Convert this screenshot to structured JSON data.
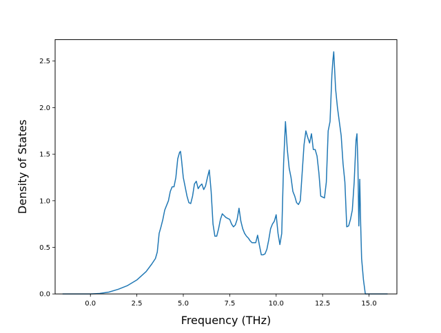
{
  "chart_data": {
    "type": "line",
    "title": "",
    "xlabel": "Frequency (THz)",
    "ylabel": "Density of States",
    "xlim": [
      -1.9,
      16.5
    ],
    "ylim": [
      0,
      2.73
    ],
    "xticks": [
      0.0,
      2.5,
      5.0,
      7.5,
      10.0,
      12.5,
      15.0
    ],
    "xtick_labels": [
      "0.0",
      "2.5",
      "5.0",
      "7.5",
      "10.0",
      "12.5",
      "15.0"
    ],
    "yticks": [
      0.0,
      0.5,
      1.0,
      1.5,
      2.0,
      2.5
    ],
    "ytick_labels": [
      "0.0",
      "0.5",
      "1.0",
      "1.5",
      "2.0",
      "2.5"
    ],
    "grid": false,
    "legend": "none",
    "series": [
      {
        "color": "#1f77b4",
        "x": [
          -1.5,
          -1.0,
          -0.5,
          0.0,
          0.5,
          1.0,
          1.5,
          2.0,
          2.5,
          3.0,
          3.3,
          3.5,
          3.6,
          3.7,
          3.8,
          3.9,
          4.0,
          4.1,
          4.2,
          4.3,
          4.4,
          4.5,
          4.6,
          4.7,
          4.8,
          4.85,
          4.9,
          5.0,
          5.1,
          5.2,
          5.3,
          5.4,
          5.5,
          5.6,
          5.7,
          5.8,
          5.9,
          6.0,
          6.1,
          6.2,
          6.3,
          6.4,
          6.5,
          6.6,
          6.7,
          6.8,
          6.9,
          7.0,
          7.1,
          7.2,
          7.3,
          7.4,
          7.5,
          7.6,
          7.7,
          7.8,
          7.9,
          8.0,
          8.1,
          8.2,
          8.3,
          8.4,
          8.5,
          8.6,
          8.7,
          8.8,
          8.9,
          9.0,
          9.1,
          9.2,
          9.3,
          9.4,
          9.5,
          9.6,
          9.7,
          9.8,
          9.9,
          10.0,
          10.1,
          10.2,
          10.3,
          10.4,
          10.5,
          10.6,
          10.7,
          10.75,
          10.8,
          10.9,
          11.0,
          11.1,
          11.2,
          11.3,
          11.4,
          11.5,
          11.6,
          11.7,
          11.75,
          11.8,
          11.9,
          12.0,
          12.1,
          12.2,
          12.3,
          12.4,
          12.5,
          12.6,
          12.7,
          12.8,
          12.9,
          13.0,
          13.05,
          13.1,
          13.15,
          13.2,
          13.3,
          13.4,
          13.5,
          13.6,
          13.7,
          13.8,
          13.9,
          14.0,
          14.1,
          14.2,
          14.3,
          14.35,
          14.4,
          14.45,
          14.5,
          14.55,
          14.6,
          14.7,
          14.8,
          15.0,
          15.5,
          16.0
        ],
        "y": [
          0.0,
          0.0,
          0.0,
          0.0,
          0.005,
          0.02,
          0.05,
          0.09,
          0.15,
          0.24,
          0.32,
          0.38,
          0.45,
          0.65,
          0.72,
          0.8,
          0.9,
          0.95,
          1.0,
          1.1,
          1.15,
          1.15,
          1.25,
          1.45,
          1.52,
          1.53,
          1.45,
          1.25,
          1.15,
          1.05,
          0.98,
          0.97,
          1.05,
          1.18,
          1.21,
          1.13,
          1.16,
          1.18,
          1.12,
          1.16,
          1.25,
          1.33,
          1.1,
          0.75,
          0.62,
          0.62,
          0.7,
          0.8,
          0.86,
          0.84,
          0.82,
          0.81,
          0.8,
          0.75,
          0.72,
          0.74,
          0.8,
          0.92,
          0.78,
          0.7,
          0.65,
          0.62,
          0.6,
          0.57,
          0.55,
          0.55,
          0.55,
          0.63,
          0.52,
          0.42,
          0.42,
          0.43,
          0.48,
          0.58,
          0.7,
          0.75,
          0.78,
          0.85,
          0.65,
          0.53,
          0.65,
          1.4,
          1.85,
          1.55,
          1.35,
          1.3,
          1.25,
          1.1,
          1.05,
          0.98,
          0.96,
          1.0,
          1.3,
          1.6,
          1.75,
          1.68,
          1.65,
          1.62,
          1.72,
          1.55,
          1.55,
          1.48,
          1.3,
          1.05,
          1.04,
          1.03,
          1.2,
          1.75,
          1.85,
          2.35,
          2.5,
          2.6,
          2.4,
          2.2,
          2.0,
          1.85,
          1.7,
          1.4,
          1.2,
          0.72,
          0.73,
          0.8,
          0.9,
          1.2,
          1.65,
          1.72,
          1.4,
          0.73,
          1.23,
          0.75,
          0.38,
          0.15,
          0.0,
          0.0,
          0.0,
          0.0
        ]
      }
    ]
  }
}
